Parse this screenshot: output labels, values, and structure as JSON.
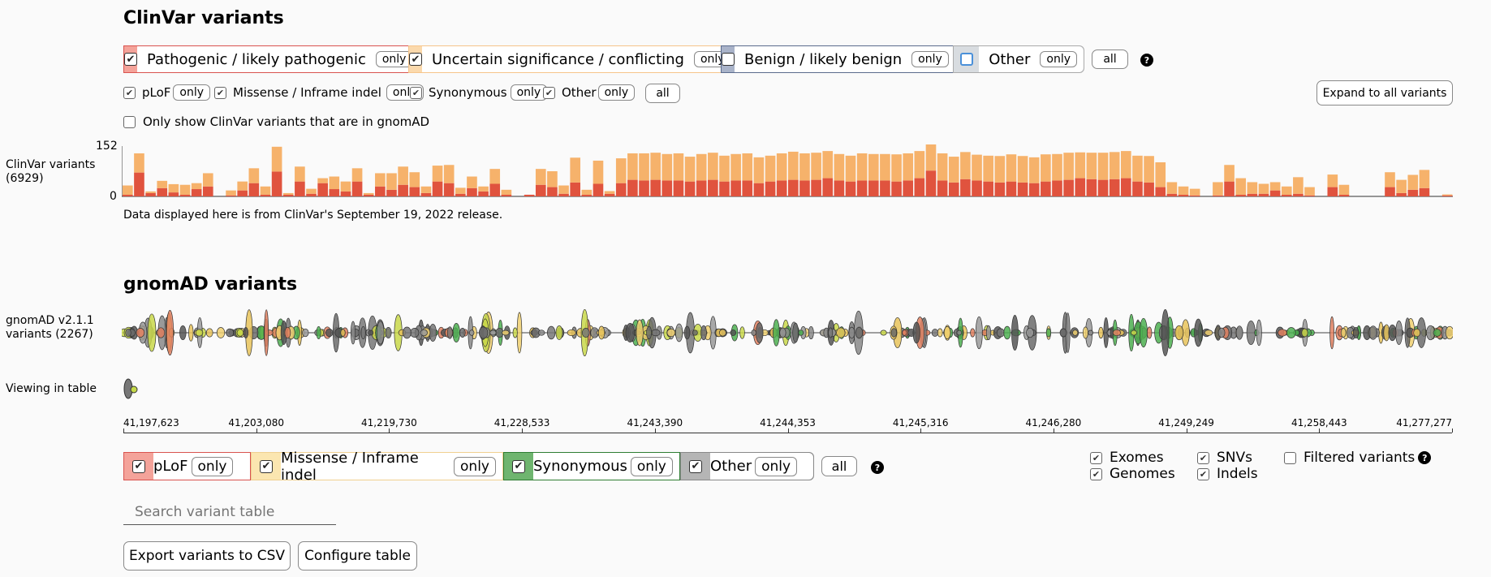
{
  "clinvar": {
    "title": "ClinVar variants",
    "categories": [
      {
        "label": "Pathogenic / likely pathogenic",
        "only": "only",
        "color": "#f4a39a",
        "border": "#d9534f",
        "checked": true
      },
      {
        "label": "Uncertain significance / conflicting",
        "only": "only",
        "color": "#fbd9ac",
        "border": "#f0ad4e",
        "checked": true
      },
      {
        "label": "Benign / likely benign",
        "only": "only",
        "color": "#a9b3c9",
        "border": "#5a6b8c",
        "checked": false
      },
      {
        "label": "Other",
        "only": "only",
        "color": "#d8dce0",
        "border": "#999",
        "checked": false
      }
    ],
    "all_label": "all",
    "consequences": [
      {
        "label": "pLoF",
        "only": "only"
      },
      {
        "label": "Missense / Inframe indel",
        "only": "only"
      },
      {
        "label": "Synonymous",
        "only": "only"
      },
      {
        "label": "Other",
        "only": "only"
      }
    ],
    "cons_all": "all",
    "expand_label": "Expand to all variants",
    "gnomad_filter_label": "Only show ClinVar variants that are in gnomAD",
    "track_label_1": "ClinVar variants",
    "track_label_2": "(6929)",
    "ymax_label": "152",
    "ymin_label": "0",
    "release_note": "Data displayed here is from ClinVar's September 19, 2022 release."
  },
  "chart_data": {
    "type": "bar",
    "title": "",
    "ylim": [
      0,
      152
    ],
    "series": [
      {
        "name": "Pathogenic / likely pathogenic",
        "color": "#e0533e",
        "values": [
          5,
          72,
          10,
          25,
          12,
          5,
          22,
          30,
          0,
          3,
          18,
          40,
          5,
          75,
          5,
          45,
          8,
          40,
          22,
          15,
          45,
          5,
          30,
          20,
          35,
          28,
          10,
          45,
          40,
          8,
          25,
          15,
          38,
          5,
          0,
          5,
          35,
          28,
          8,
          42,
          5,
          38,
          8,
          40,
          50,
          48,
          50,
          48,
          48,
          45,
          48,
          50,
          45,
          48,
          48,
          40,
          45,
          48,
          50,
          48,
          50,
          55,
          48,
          45,
          48,
          48,
          48,
          45,
          48,
          55,
          78,
          48,
          42,
          52,
          48,
          45,
          42,
          45,
          42,
          40,
          45,
          48,
          50,
          55,
          52,
          50,
          52,
          55,
          45,
          42,
          28,
          8,
          5,
          3,
          0,
          3,
          45,
          5,
          8,
          8,
          18,
          5,
          8,
          3,
          0,
          28,
          5,
          0,
          0,
          0,
          28,
          10,
          20,
          25,
          0,
          3
        ]
      },
      {
        "name": "Uncertain significance / conflicting",
        "color": "#f6b26b",
        "values": [
          28,
          58,
          5,
          22,
          25,
          30,
          18,
          40,
          0,
          15,
          27,
          45,
          25,
          75,
          5,
          45,
          15,
          15,
          38,
          30,
          40,
          5,
          40,
          50,
          55,
          45,
          20,
          48,
          55,
          18,
          35,
          15,
          45,
          15,
          0,
          0,
          48,
          48,
          25,
          75,
          15,
          70,
          8,
          75,
          80,
          82,
          82,
          80,
          82,
          75,
          80,
          82,
          78,
          80,
          82,
          78,
          78,
          82,
          85,
          82,
          82,
          82,
          80,
          78,
          82,
          80,
          80,
          82,
          82,
          82,
          80,
          82,
          78,
          82,
          78,
          78,
          80,
          82,
          80,
          78,
          82,
          80,
          82,
          78,
          80,
          82,
          82,
          82,
          78,
          80,
          75,
          35,
          25,
          20,
          0,
          40,
          50,
          50,
          35,
          30,
          25,
          25,
          50,
          25,
          0,
          38,
          30,
          0,
          0,
          0,
          45,
          40,
          45,
          55,
          0,
          3
        ]
      }
    ]
  },
  "gnomad": {
    "title": "gnomAD variants",
    "track_label_1": "gnomAD v2.1.1",
    "track_label_2": "variants (2267)",
    "viewing_label": "Viewing in table",
    "ticks": [
      "41,197,623",
      "41,203,080",
      "41,219,730",
      "41,228,533",
      "41,243,390",
      "41,244,353",
      "41,245,316",
      "41,246,280",
      "41,249,249",
      "41,258,443",
      "41,277,277"
    ],
    "categories": [
      {
        "label": "pLoF",
        "only": "only",
        "color": "#f4a39a",
        "border": "#d9534f"
      },
      {
        "label": "Missense / Inframe indel",
        "only": "only",
        "color": "#fbe6b0",
        "border": "#f0c060"
      },
      {
        "label": "Synonymous",
        "only": "only",
        "color": "#6fb56f",
        "border": "#2e7d32"
      },
      {
        "label": "Other",
        "only": "only",
        "color": "#b5b5b5",
        "border": "#888"
      }
    ],
    "all_label": "all",
    "filters": {
      "exomes": "Exomes",
      "genomes": "Genomes",
      "snvs": "SNVs",
      "indels": "Indels",
      "filtered": "Filtered variants"
    },
    "search_placeholder": "Search variant table",
    "export_label": "Export variants to CSV",
    "configure_label": "Configure table"
  }
}
